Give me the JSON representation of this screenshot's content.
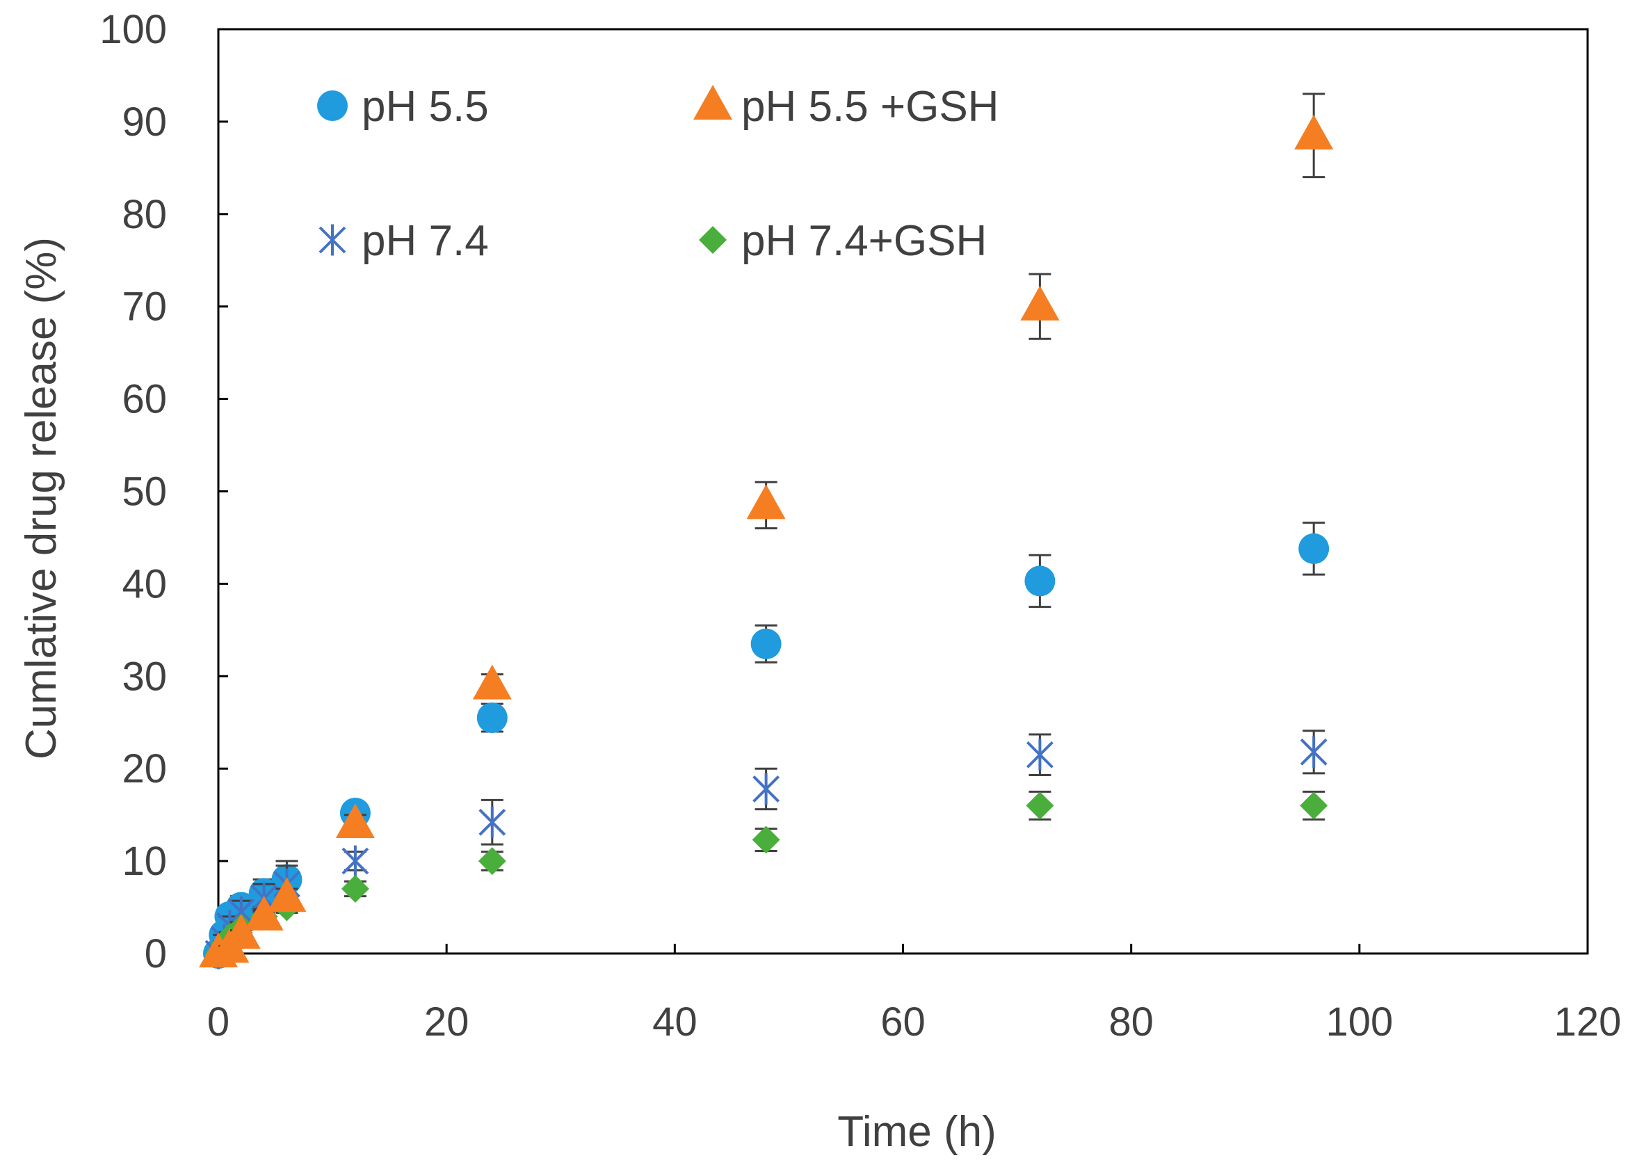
{
  "chart_data": {
    "type": "scatter",
    "title": "",
    "xlabel": "Time (h)",
    "ylabel": "Cumlative drug release (%)",
    "xlim": [
      0,
      120
    ],
    "ylim": [
      0,
      100
    ],
    "xticks": [
      0,
      20,
      40,
      60,
      80,
      100,
      120
    ],
    "yticks": [
      0,
      10,
      20,
      30,
      40,
      50,
      60,
      70,
      80,
      90,
      100
    ],
    "grid": false,
    "legend_position": "top-left",
    "series": [
      {
        "name": "pH 5.5",
        "marker": "circle",
        "color": "#1f9bde",
        "x": [
          0,
          0.5,
          1,
          2,
          4,
          6,
          12,
          24,
          48,
          72,
          96
        ],
        "y": [
          0,
          2.0,
          4.0,
          5.0,
          6.5,
          8.0,
          15.2,
          25.5,
          33.5,
          40.3,
          43.8
        ],
        "err": [
          0,
          0.5,
          1.0,
          1.2,
          1.5,
          2.0,
          0.8,
          1.5,
          2.0,
          2.8,
          2.8
        ]
      },
      {
        "name": "pH 5.5 +GSH",
        "marker": "triangle",
        "color": "#f57e22",
        "x": [
          0,
          1,
          2,
          4,
          6,
          12,
          24,
          48,
          72,
          96
        ],
        "y": [
          0,
          0.5,
          2.0,
          4.0,
          6.0,
          14.0,
          29.0,
          48.5,
          70.0,
          88.5
        ],
        "err": [
          0,
          0.3,
          0.5,
          0.8,
          1.0,
          1.0,
          1.2,
          2.5,
          3.5,
          4.5
        ]
      },
      {
        "name": "pH 7.4",
        "marker": "asterisk",
        "color": "#4472c4",
        "x": [
          0,
          0.5,
          1,
          2,
          4,
          6,
          12,
          24,
          48,
          72,
          96
        ],
        "y": [
          0,
          1.5,
          3.0,
          4.5,
          6.0,
          7.5,
          10.0,
          14.2,
          17.8,
          21.5,
          21.8
        ],
        "err": [
          0,
          0.5,
          1.0,
          1.2,
          1.5,
          2.0,
          1.0,
          2.4,
          2.2,
          2.2,
          2.3
        ]
      },
      {
        "name": "pH 7.4+GSH",
        "marker": "diamond",
        "color": "#4aae3c",
        "x": [
          0,
          0.5,
          1,
          2,
          4,
          6,
          12,
          24,
          48,
          72,
          96
        ],
        "y": [
          0,
          1.0,
          1.8,
          2.8,
          4.0,
          5.0,
          7.0,
          10.0,
          12.3,
          16.0,
          16.0
        ],
        "err": [
          0,
          0.3,
          0.5,
          0.6,
          0.6,
          0.6,
          0.8,
          1.0,
          1.2,
          1.5,
          1.5
        ]
      }
    ]
  }
}
